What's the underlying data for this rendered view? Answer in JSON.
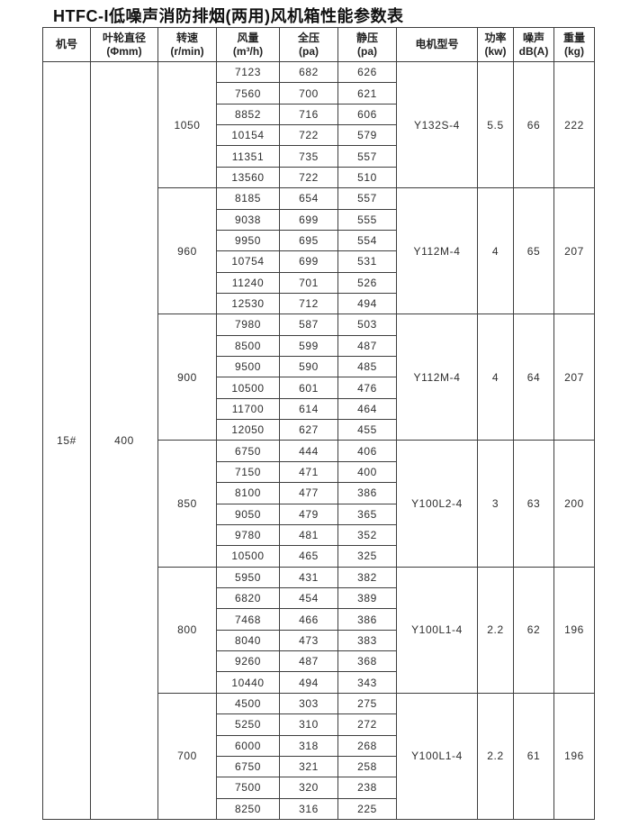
{
  "title": "HTFC-I低噪声消防排烟(两用)风机箱性能参数表",
  "colors": {
    "background": "#ffffff",
    "border": "#3d3d3d",
    "text": "#2e2e2e"
  },
  "table": {
    "headers": [
      {
        "line1": "机号",
        "line2": ""
      },
      {
        "line1": "叶轮直径",
        "line2": "(Φmm)"
      },
      {
        "line1": "转速",
        "line2": "(r/min)"
      },
      {
        "line1": "风量",
        "line2": "(m³/h)"
      },
      {
        "line1": "全压",
        "line2": "(pa)"
      },
      {
        "line1": "静压",
        "line2": "(pa)"
      },
      {
        "line1": "电机型号",
        "line2": ""
      },
      {
        "line1": "功率",
        "line2": "(kw)"
      },
      {
        "line1": "噪声",
        "line2": "dB(A)"
      },
      {
        "line1": "重量",
        "line2": "(kg)"
      }
    ],
    "machine_no": "15#",
    "impeller_diameter": "400",
    "groups": [
      {
        "speed": "1050",
        "rows": [
          [
            "7123",
            "682",
            "626"
          ],
          [
            "7560",
            "700",
            "621"
          ],
          [
            "8852",
            "716",
            "606"
          ],
          [
            "10154",
            "722",
            "579"
          ],
          [
            "11351",
            "735",
            "557"
          ],
          [
            "13560",
            "722",
            "510"
          ]
        ],
        "motor": "Y132S-4",
        "power": "5.5",
        "noise": "66",
        "weight": "222"
      },
      {
        "speed": "960",
        "rows": [
          [
            "8185",
            "654",
            "557"
          ],
          [
            "9038",
            "699",
            "555"
          ],
          [
            "9950",
            "695",
            "554"
          ],
          [
            "10754",
            "699",
            "531"
          ],
          [
            "11240",
            "701",
            "526"
          ],
          [
            "12530",
            "712",
            "494"
          ]
        ],
        "motor": "Y112M-4",
        "power": "4",
        "noise": "65",
        "weight": "207"
      },
      {
        "speed": "900",
        "rows": [
          [
            "7980",
            "587",
            "503"
          ],
          [
            "8500",
            "599",
            "487"
          ],
          [
            "9500",
            "590",
            "485"
          ],
          [
            "10500",
            "601",
            "476"
          ],
          [
            "11700",
            "614",
            "464"
          ],
          [
            "12050",
            "627",
            "455"
          ]
        ],
        "motor": "Y112M-4",
        "power": "4",
        "noise": "64",
        "weight": "207"
      },
      {
        "speed": "850",
        "rows": [
          [
            "6750",
            "444",
            "406"
          ],
          [
            "7150",
            "471",
            "400"
          ],
          [
            "8100",
            "477",
            "386"
          ],
          [
            "9050",
            "479",
            "365"
          ],
          [
            "9780",
            "481",
            "352"
          ],
          [
            "10500",
            "465",
            "325"
          ]
        ],
        "motor": "Y100L2-4",
        "power": "3",
        "noise": "63",
        "weight": "200"
      },
      {
        "speed": "800",
        "rows": [
          [
            "5950",
            "431",
            "382"
          ],
          [
            "6820",
            "454",
            "389"
          ],
          [
            "7468",
            "466",
            "386"
          ],
          [
            "8040",
            "473",
            "383"
          ],
          [
            "9260",
            "487",
            "368"
          ],
          [
            "10440",
            "494",
            "343"
          ]
        ],
        "motor": "Y100L1-4",
        "power": "2.2",
        "noise": "62",
        "weight": "196"
      },
      {
        "speed": "700",
        "rows": [
          [
            "4500",
            "303",
            "275"
          ],
          [
            "5250",
            "310",
            "272"
          ],
          [
            "6000",
            "318",
            "268"
          ],
          [
            "6750",
            "321",
            "258"
          ],
          [
            "7500",
            "320",
            "238"
          ],
          [
            "8250",
            "316",
            "225"
          ]
        ],
        "motor": "Y100L1-4",
        "power": "2.2",
        "noise": "61",
        "weight": "196"
      }
    ]
  }
}
